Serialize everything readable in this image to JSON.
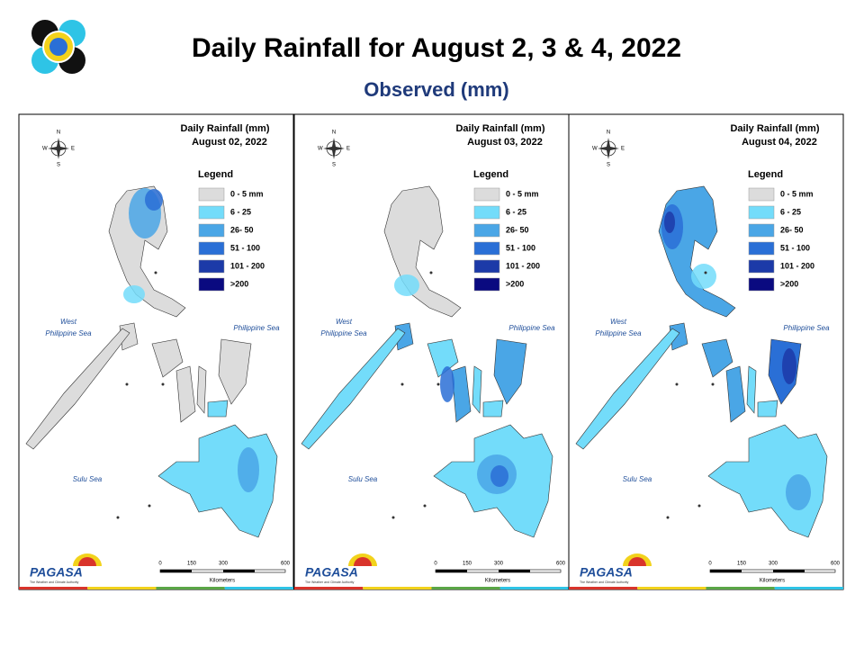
{
  "header": {
    "title": "Daily Rainfall for August 2, 3 & 4, 2022",
    "subtitle": "Observed (mm)"
  },
  "panels": [
    {
      "title": "Daily Rainfall (mm)",
      "date": "August 02, 2022",
      "compass": {
        "n": "N",
        "s": "S",
        "e": "E",
        "w": "W"
      },
      "legend": {
        "title": "Legend",
        "items": [
          {
            "label": "0 - 5 mm",
            "color": "#dcdcdc"
          },
          {
            "label": "6 - 25",
            "color": "#73dcfa"
          },
          {
            "label": "26- 50",
            "color": "#4aa6e6"
          },
          {
            "label": "51 - 100",
            "color": "#2a6fd6"
          },
          {
            "label": "101 - 200",
            "color": "#1c3aa8"
          },
          {
            "label": ">200",
            "color": "#0a0a80"
          }
        ]
      },
      "seas": {
        "west_1": "West",
        "west_2": "Philippine Sea",
        "east": "Philippine Sea",
        "sulu": "Sulu Sea"
      },
      "scale": {
        "ticks": [
          0,
          150,
          300,
          600
        ],
        "unit": "Kilometers"
      },
      "logo": {
        "name": "PAGASA",
        "tagline": "The Weather and Climate Authority"
      }
    },
    {
      "title": "Daily Rainfall (mm)",
      "date": "August 03, 2022",
      "compass": {
        "n": "N",
        "s": "S",
        "e": "E",
        "w": "W"
      },
      "legend": {
        "title": "Legend",
        "items": [
          {
            "label": "0 - 5 mm",
            "color": "#dcdcdc"
          },
          {
            "label": "6 - 25",
            "color": "#73dcfa"
          },
          {
            "label": "26- 50",
            "color": "#4aa6e6"
          },
          {
            "label": "51 - 100",
            "color": "#2a6fd6"
          },
          {
            "label": "101 - 200",
            "color": "#1c3aa8"
          },
          {
            "label": ">200",
            "color": "#0a0a80"
          }
        ]
      },
      "seas": {
        "west_1": "West",
        "west_2": "Philippine Sea",
        "east": "Philippine Sea",
        "sulu": "Sulu Sea"
      },
      "scale": {
        "ticks": [
          0,
          150,
          300,
          600
        ],
        "unit": "Kilometers"
      },
      "logo": {
        "name": "PAGASA",
        "tagline": "The Weather and Climate Authority"
      }
    },
    {
      "title": "Daily Rainfall (mm)",
      "date": "August 04, 2022",
      "compass": {
        "n": "N",
        "s": "S",
        "e": "E",
        "w": "W"
      },
      "legend": {
        "title": "Legend",
        "items": [
          {
            "label": "0 - 5 mm",
            "color": "#dcdcdc"
          },
          {
            "label": "6 - 25",
            "color": "#73dcfa"
          },
          {
            "label": "26- 50",
            "color": "#4aa6e6"
          },
          {
            "label": "51 - 100",
            "color": "#2a6fd6"
          },
          {
            "label": "101 - 200",
            "color": "#1c3aa8"
          },
          {
            "label": ">200",
            "color": "#0a0a80"
          }
        ]
      },
      "seas": {
        "west_1": "West",
        "west_2": "Philippine Sea",
        "east": "Philippine Sea",
        "sulu": "Sulu Sea"
      },
      "scale": {
        "ticks": [
          0,
          150,
          300,
          600
        ],
        "unit": "Kilometers"
      },
      "logo": {
        "name": "PAGASA",
        "tagline": "The Weather and Climate Authority"
      }
    }
  ]
}
